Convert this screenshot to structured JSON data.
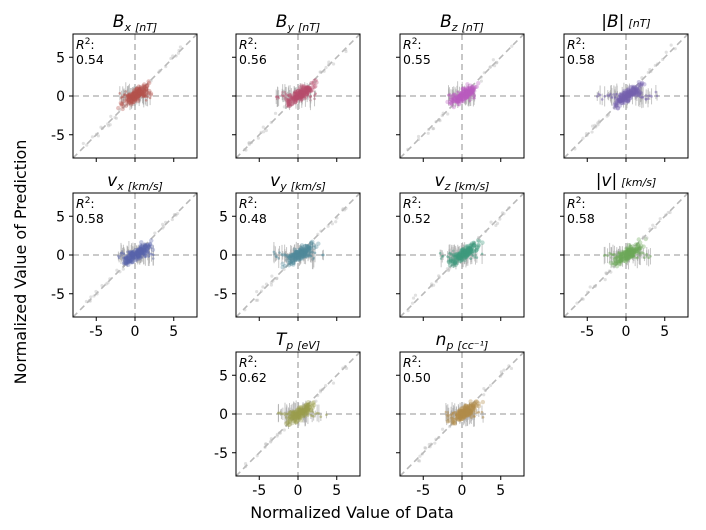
{
  "chart_data": {
    "type": "scatter",
    "figure": {
      "xlabel": "Normalized Value of Data",
      "ylabel": "Normalized Value of Prediction",
      "r2_prefix": "R",
      "r2_sup": "2",
      "r2_suffix": ":"
    },
    "xlim": [
      -8,
      8
    ],
    "ylim": [
      -8,
      8
    ],
    "xticks": [
      "-5",
      "0",
      "5"
    ],
    "yticks": [
      "5",
      "0",
      "-5"
    ],
    "guides": [
      "diagonal y = x (dashed)",
      "vertical x = 0 (dashed)",
      "horizontal y = 0 (dashed)"
    ],
    "panels": [
      {
        "title": "B",
        "sub": "x",
        "unit": "[nT]",
        "r2": "0.54",
        "color": "#b5544e",
        "spread": 2.6
      },
      {
        "title": "B",
        "sub": "y",
        "unit": "[nT]",
        "r2": "0.56",
        "color": "#b84d6e",
        "spread": 3.5
      },
      {
        "title": "B",
        "sub": "z",
        "unit": "[nT]",
        "r2": "0.55",
        "color": "#bb5bbf",
        "spread": 2.2
      },
      {
        "title": "|B|",
        "sub": "",
        "unit": "[nT]",
        "r2": "0.58",
        "color": "#7560b0",
        "spread": 4.8
      },
      {
        "title": "v",
        "sub": "x",
        "unit": "[km/s]",
        "r2": "0.58",
        "color": "#5864ad",
        "spread": 2.8
      },
      {
        "title": "v",
        "sub": "y",
        "unit": "[km/s]",
        "r2": "0.48",
        "color": "#4f8a9c",
        "spread": 3.8
      },
      {
        "title": "v",
        "sub": "z",
        "unit": "[km/s]",
        "r2": "0.52",
        "color": "#3f9a7e",
        "spread": 3.2
      },
      {
        "title": "|v|",
        "sub": "",
        "unit": "[km/s]",
        "r2": "0.58",
        "color": "#6ea859",
        "spread": 3.6
      },
      {
        "title": "T",
        "sub": "p",
        "unit": "[eV]",
        "r2": "0.62",
        "color": "#9a9e4d",
        "spread": 4.2
      },
      {
        "title": "n",
        "sub": "p",
        "unit": "[cc⁻¹]",
        "r2": "0.50",
        "color": "#b38c4a",
        "spread": 3.2
      }
    ]
  }
}
